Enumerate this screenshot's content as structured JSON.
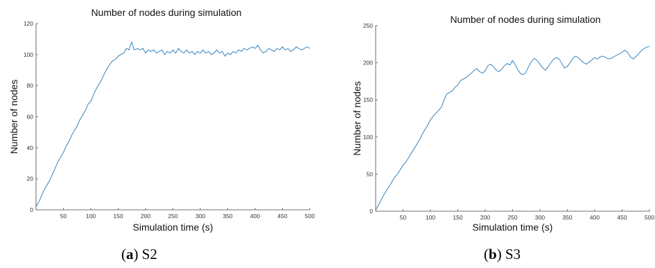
{
  "chart_data": [
    {
      "type": "line",
      "title": "Number of nodes during simulation",
      "xlabel": "Simulation time (s)",
      "ylabel": "Number of nodes",
      "xlim": [
        0,
        500
      ],
      "ylim": [
        0,
        120
      ],
      "xticks": [
        50,
        100,
        150,
        200,
        250,
        300,
        350,
        400,
        450,
        500
      ],
      "yticks": [
        0,
        20,
        40,
        60,
        80,
        100,
        120
      ],
      "grid": false,
      "series": [
        {
          "color": "#1f77b4",
          "x": [
            0,
            5,
            10,
            15,
            20,
            25,
            30,
            35,
            40,
            45,
            50,
            55,
            60,
            65,
            70,
            75,
            80,
            85,
            90,
            95,
            100,
            105,
            110,
            115,
            120,
            125,
            130,
            135,
            140,
            145,
            150,
            155,
            160,
            165,
            170,
            172,
            175,
            178,
            180,
            185,
            190,
            195,
            200,
            205,
            210,
            215,
            220,
            225,
            230,
            235,
            240,
            245,
            250,
            255,
            260,
            265,
            270,
            275,
            280,
            285,
            290,
            295,
            300,
            305,
            310,
            315,
            320,
            325,
            330,
            335,
            340,
            345,
            350,
            355,
            360,
            365,
            370,
            375,
            380,
            385,
            390,
            395,
            400,
            405,
            410,
            415,
            420,
            425,
            430,
            435,
            440,
            445,
            450,
            455,
            460,
            465,
            470,
            475,
            480,
            485,
            490,
            495,
            500
          ],
          "y": [
            2,
            5,
            9,
            13,
            16,
            19,
            23,
            27,
            31,
            34,
            37,
            41,
            44,
            48,
            51,
            54,
            58,
            61,
            64,
            68,
            70,
            74,
            78,
            81,
            84,
            88,
            91,
            94,
            96,
            97,
            99,
            100,
            101,
            104,
            103,
            106,
            108,
            104,
            103,
            104,
            103,
            104,
            101,
            103,
            102,
            103,
            101,
            102,
            103,
            100,
            102,
            101,
            103,
            101,
            104,
            102,
            101,
            103,
            101,
            102,
            100,
            102,
            101,
            103,
            101,
            102,
            100,
            101,
            103,
            101,
            102,
            99,
            101,
            100,
            102,
            101,
            103,
            102,
            104,
            103,
            104,
            105,
            104,
            106,
            103,
            101,
            102,
            104,
            103,
            102,
            104,
            103,
            105,
            103,
            104,
            102,
            103,
            105,
            104,
            103,
            104,
            105,
            104
          ]
        }
      ]
    },
    {
      "type": "line",
      "title": "Number of nodes during simulation",
      "xlabel": "Simulation time (s)",
      "ylabel": "Number of nodes",
      "xlim": [
        0,
        500
      ],
      "ylim": [
        0,
        250
      ],
      "xticks": [
        50,
        100,
        150,
        200,
        250,
        300,
        350,
        400,
        450,
        500
      ],
      "yticks": [
        0,
        50,
        100,
        150,
        200,
        250
      ],
      "grid": false,
      "series": [
        {
          "color": "#1f77b4",
          "x": [
            0,
            5,
            10,
            15,
            20,
            25,
            30,
            35,
            40,
            45,
            50,
            55,
            60,
            65,
            70,
            75,
            80,
            85,
            90,
            95,
            100,
            105,
            110,
            115,
            120,
            125,
            130,
            135,
            140,
            145,
            150,
            155,
            160,
            165,
            170,
            175,
            180,
            185,
            190,
            195,
            200,
            205,
            210,
            215,
            220,
            225,
            230,
            235,
            240,
            245,
            250,
            255,
            260,
            265,
            270,
            275,
            280,
            285,
            290,
            295,
            300,
            305,
            310,
            315,
            320,
            325,
            330,
            335,
            340,
            345,
            350,
            355,
            360,
            365,
            370,
            375,
            380,
            385,
            390,
            395,
            400,
            405,
            410,
            415,
            420,
            425,
            430,
            435,
            440,
            445,
            450,
            455,
            460,
            465,
            470,
            475,
            480,
            485,
            490,
            495,
            500
          ],
          "y": [
            2,
            8,
            15,
            22,
            28,
            34,
            40,
            46,
            50,
            56,
            62,
            66,
            72,
            78,
            84,
            90,
            96,
            104,
            110,
            116,
            123,
            128,
            132,
            136,
            140,
            150,
            158,
            160,
            162,
            167,
            170,
            176,
            178,
            180,
            183,
            186,
            190,
            192,
            188,
            186,
            189,
            196,
            198,
            195,
            190,
            188,
            191,
            196,
            199,
            197,
            203,
            197,
            190,
            185,
            184,
            188,
            196,
            202,
            206,
            203,
            198,
            193,
            190,
            195,
            200,
            205,
            207,
            205,
            199,
            193,
            195,
            200,
            206,
            209,
            207,
            203,
            200,
            198,
            201,
            204,
            207,
            205,
            208,
            209,
            207,
            205,
            206,
            208,
            210,
            212,
            214,
            217,
            214,
            208,
            205,
            208,
            212,
            216,
            219,
            221,
            222
          ]
        }
      ]
    }
  ],
  "captions": {
    "a": {
      "tag": "(a)",
      "tag_letter": "a",
      "label": "S2"
    },
    "b": {
      "tag": "(b)",
      "tag_letter": "b",
      "label": "S3"
    }
  }
}
